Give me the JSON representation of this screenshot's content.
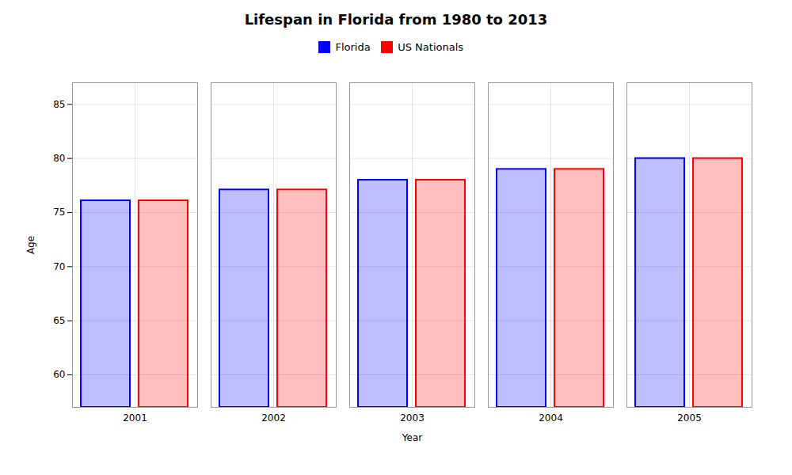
{
  "chart_data": {
    "type": "bar",
    "title": "Lifespan in Florida from 1980 to 2013",
    "xlabel": "Year",
    "ylabel": "Age",
    "categories": [
      "2001",
      "2002",
      "2003",
      "2004",
      "2005"
    ],
    "series": [
      {
        "name": "Florida",
        "color": "#0000ff",
        "values": [
          76.1,
          77.1,
          78.0,
          79.0,
          80.0
        ]
      },
      {
        "name": "US Nationals",
        "color": "#ff0000",
        "values": [
          76.1,
          77.1,
          78.0,
          79.0,
          80.0
        ]
      }
    ],
    "ylim": [
      57,
      87
    ],
    "yticks": [
      60,
      65,
      70,
      75,
      80,
      85
    ],
    "grid": true,
    "legend": "top"
  }
}
